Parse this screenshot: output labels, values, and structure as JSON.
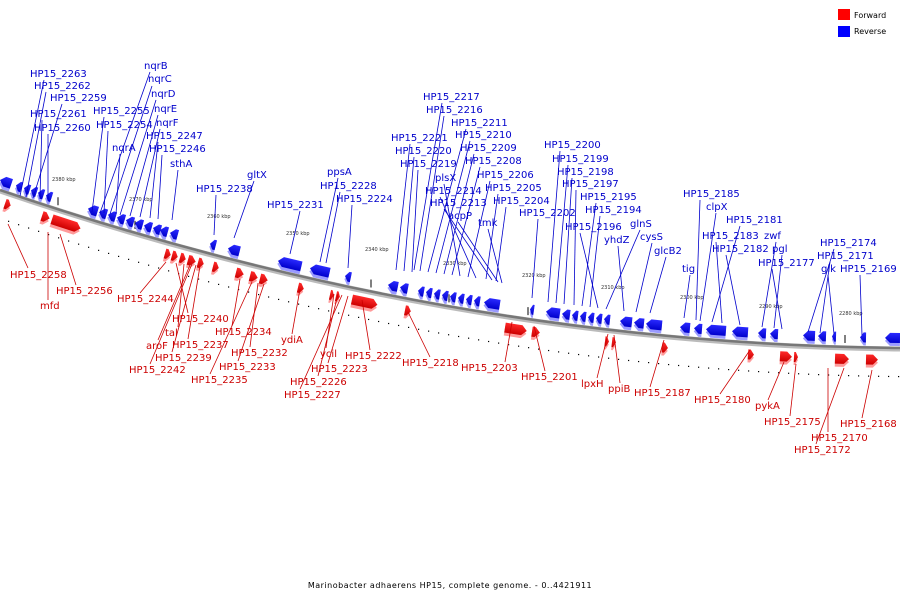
{
  "legend": {
    "forward": {
      "label": "Forward",
      "color": "#ff0000"
    },
    "reverse": {
      "label": "Reverse",
      "color": "#0000ff"
    }
  },
  "caption": "Marinobacter adhaerens HP15, complete genome. - 0..4421911",
  "tick_labels": [
    "2380 kbp",
    "2370 kbp",
    "2360 kbp",
    "2350 kbp",
    "2340 kbp",
    "2330 kbp",
    "2320 kbp",
    "2310 kbp",
    "2300 kbp",
    "2290 kbp",
    "2280 kbp"
  ],
  "reverse_labels": [
    "HP15_2263",
    "HP15_2262",
    "HP15_2259",
    "HP15_2261",
    "HP15_2260",
    "nqrB",
    "nqrC",
    "nqrD",
    "nqrE",
    "nqrF",
    "HP15_2255",
    "HP15_2254",
    "nqrA",
    "HP15_2247",
    "HP15_2246",
    "sthA",
    "HP15_2238",
    "gltX",
    "HP15_2231",
    "ppsA",
    "HP15_2228",
    "HP15_2224",
    "HP15_2217",
    "HP15_2216",
    "HP15_2211",
    "HP15_2221",
    "HP15_2210",
    "HP15_2220",
    "HP15_2209",
    "HP15_2219",
    "HP15_2208",
    "plsX",
    "HP15_2206",
    "HP15_2214",
    "HP15_2205",
    "HP15_2213",
    "HP15_2204",
    "acpP",
    "HP15_2202",
    "tmk",
    "HP15_2200",
    "HP15_2199",
    "HP15_2198",
    "HP15_2197",
    "HP15_2195",
    "HP15_2194",
    "HP15_2196",
    "glnS",
    "yhdZ",
    "cysS",
    "glcB2",
    "tig",
    "HP15_2185",
    "clpX",
    "HP15_2181",
    "HP15_2183",
    "zwf",
    "HP15_2182",
    "pgl",
    "HP15_2177",
    "HP15_2174",
    "HP15_2171",
    "glk",
    "HP15_2169"
  ],
  "forward_labels": [
    "HP15_2258",
    "mfd",
    "HP15_2256",
    "HP15_2244",
    "HP15_2240",
    "tal",
    "aroF",
    "HP15_2237",
    "HP15_2239",
    "HP15_2242",
    "HP15_2234",
    "HP15_2235",
    "HP15_2232",
    "HP15_2233",
    "ydiA",
    "ycil",
    "HP15_2226",
    "HP15_2227",
    "HP15_2223",
    "HP15_2222",
    "HP15_2218",
    "HP15_2203",
    "HP15_2201",
    "lpxH",
    "ppiB",
    "HP15_2187",
    "HP15_2180",
    "pykA",
    "HP15_2175",
    "HP15_2170",
    "HP15_2172",
    "HP15_2168"
  ]
}
